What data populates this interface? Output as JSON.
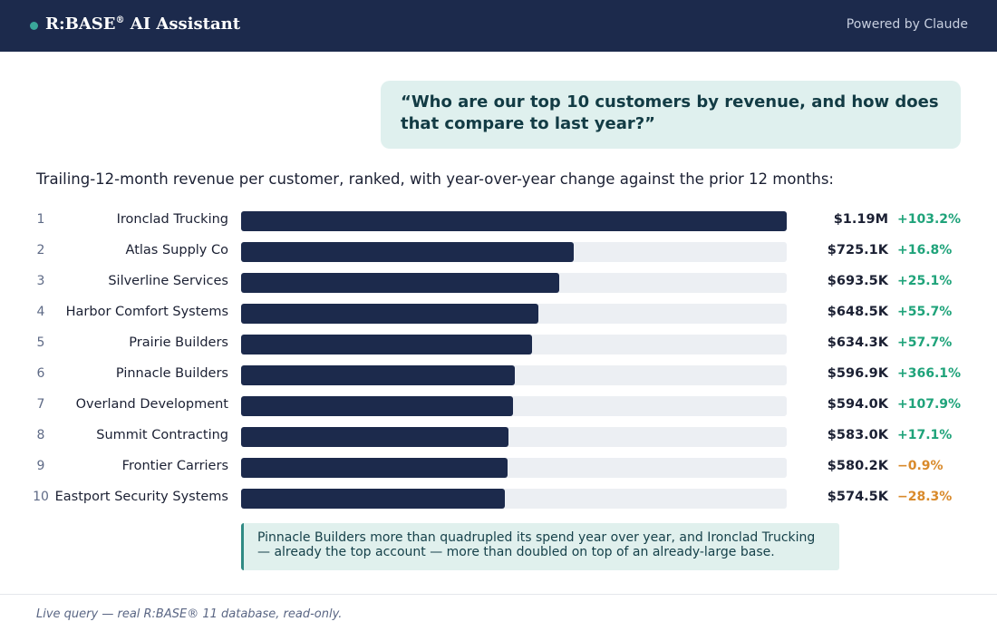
{
  "header": {
    "title": "R:BASE",
    "title_mark": "®",
    "title_suffix": " AI Assistant",
    "powered_by": "Powered by Claude"
  },
  "question": "“Who are our top 10 customers by revenue, and how does that compare to last year?”",
  "intro": "Trailing-12-month revenue per customer, ranked, with year-over-year change against the prior 12 months:",
  "colors": {
    "bar": "#1c2a4c",
    "track": "#eceff3",
    "positive": "#1fa37a",
    "negative": "#d98a2b",
    "accent": "#3aa79a"
  },
  "chart_data": {
    "type": "bar",
    "orientation": "horizontal",
    "xlim": [
      0,
      1.19
    ],
    "units": "$M",
    "categories": [
      "Ironclad Trucking",
      "Atlas Supply Co",
      "Silverline Services",
      "Harbor Comfort Systems",
      "Prairie Builders",
      "Pinnacle Builders",
      "Overland Development",
      "Summit Contracting",
      "Frontier Carriers",
      "Eastport Security Systems"
    ],
    "ranks": [
      "1",
      "2",
      "3",
      "4",
      "5",
      "6",
      "7",
      "8",
      "9",
      "10"
    ],
    "values": [
      1.19,
      0.7251,
      0.6935,
      0.6485,
      0.6343,
      0.5969,
      0.594,
      0.583,
      0.5802,
      0.5745
    ],
    "value_labels": [
      "$1.19M",
      "$725.1K",
      "$693.5K",
      "$648.5K",
      "$634.3K",
      "$596.9K",
      "$594.0K",
      "$583.0K",
      "$580.2K",
      "$574.5K"
    ],
    "yoy_change": [
      103.2,
      16.8,
      25.1,
      55.7,
      57.7,
      366.1,
      107.9,
      17.1,
      -0.9,
      -28.3
    ],
    "yoy_labels": [
      "+103.2%",
      "+16.8%",
      "+25.1%",
      "+55.7%",
      "+57.7%",
      "+366.1%",
      "+107.9%",
      "+17.1%",
      "−0.9%",
      "−28.3%"
    ]
  },
  "insight": "Pinnacle Builders more than quadrupled its spend year over year, and Ironclad Trucking — already the top account — more than doubled on top of an already-large base.",
  "footnote": "Live query — real R:BASE® 11 database, read-only."
}
